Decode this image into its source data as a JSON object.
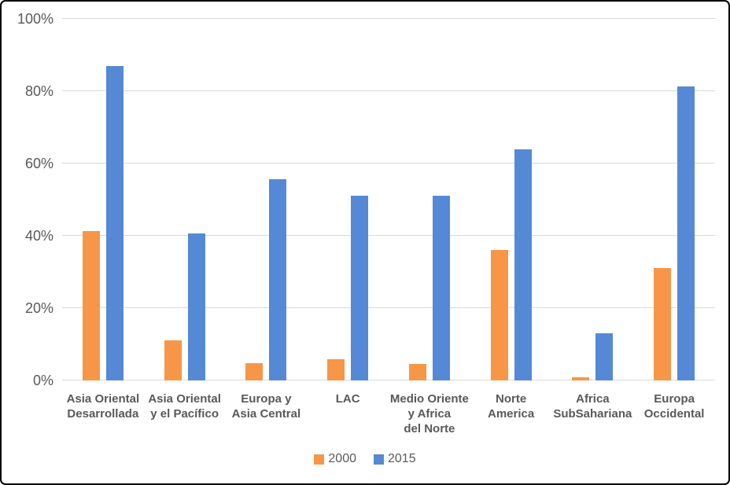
{
  "chart_data": {
    "type": "bar",
    "title": "",
    "xlabel": "",
    "ylabel": "",
    "categories": [
      "Asia Oriental Desarrollada",
      "Asia Oriental y el Pacífico",
      "Europa y Asia Central",
      "LAC",
      "Medio Oriente y Africa del Norte",
      "Norte America",
      "Africa SubSahariana",
      "Europa Occidental"
    ],
    "category_label_lines": [
      [
        "Asia Oriental",
        "Desarrollada"
      ],
      [
        "Asia Oriental",
        "y el Pacífico"
      ],
      [
        "Europa y",
        "Asia Central"
      ],
      [
        "LAC"
      ],
      [
        "Medio Oriente",
        "y Africa",
        "del Norte"
      ],
      [
        "Norte",
        "America"
      ],
      [
        "Africa",
        "SubSahariana"
      ],
      [
        "Europa",
        "Occidental"
      ]
    ],
    "series": [
      {
        "name": "2000",
        "color": "#F79646",
        "values": [
          41.3,
          11,
          4.8,
          5.8,
          4.5,
          36,
          0.8,
          31
        ]
      },
      {
        "name": "2015",
        "color": "#5589D5",
        "values": [
          87,
          40.7,
          55.7,
          51,
          51,
          64,
          13,
          81.3
        ]
      }
    ],
    "y_axis": {
      "min": 0,
      "max": 100,
      "tick_step": 20,
      "tick_labels": [
        "0%",
        "20%",
        "40%",
        "60%",
        "80%",
        "100%"
      ],
      "unit": "%"
    },
    "legend_position": "bottom",
    "grid": true,
    "gridline_color": "#d9d9d9",
    "axis_text_color": "#595959",
    "background_color": "#ffffff",
    "border_color": "#000000"
  }
}
